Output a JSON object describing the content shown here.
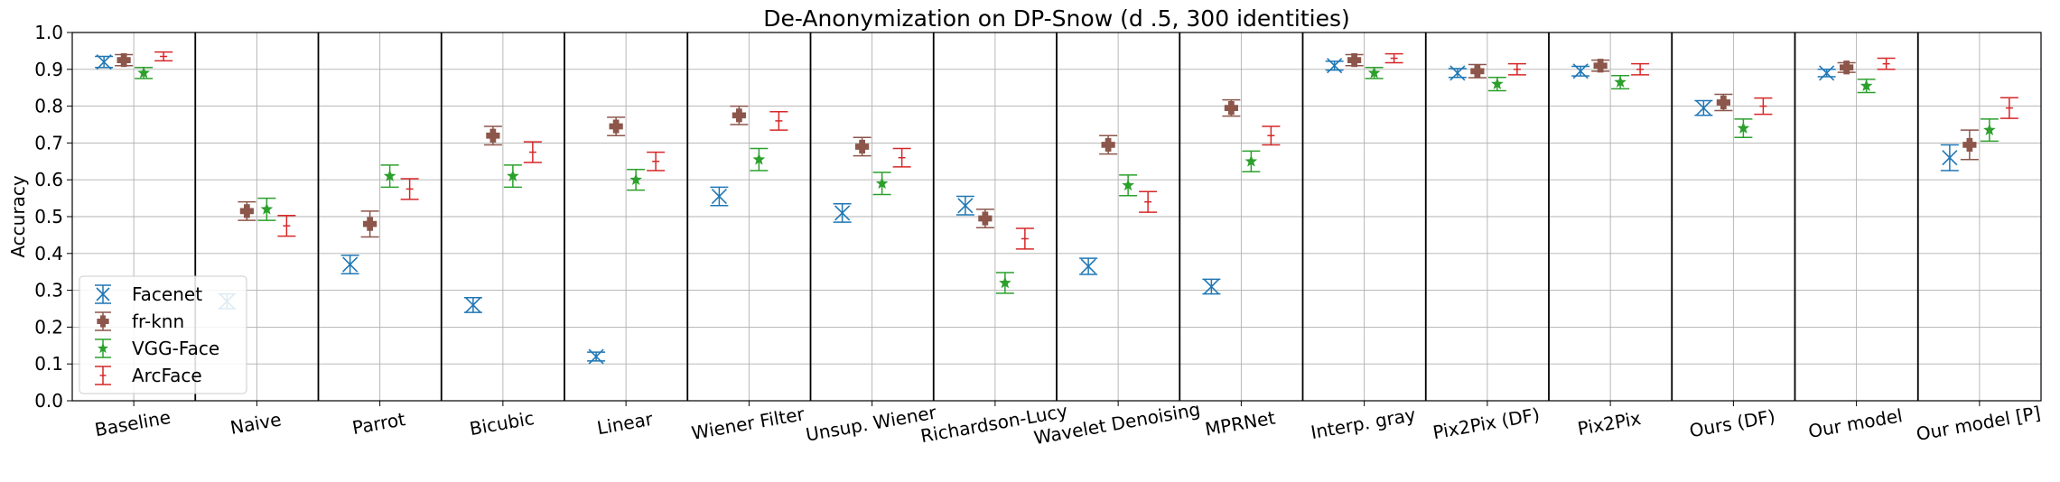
{
  "chart_data": {
    "type": "scatter",
    "title": "De-Anonymization on DP-Snow (d .5, 300 identities)",
    "xlabel": "",
    "ylabel": "Accuracy",
    "ylim": [
      0.0,
      1.0
    ],
    "yticks": [
      "0.0",
      "0.1",
      "0.2",
      "0.3",
      "0.4",
      "0.5",
      "0.6",
      "0.7",
      "0.8",
      "0.9",
      "1.0"
    ],
    "grid": true,
    "legend_position": "lower-left",
    "categories": [
      "Baseline",
      "Naive",
      "Parrot",
      "Bicubic",
      "Linear",
      "Wiener Filter",
      "Unsup. Wiener",
      "Richardson-Lucy",
      "Wavelet Denoising",
      "MPRNet",
      "Interp. gray",
      "Pix2Pix (DF)",
      "Pix2Pix",
      "Ours (DF)",
      "Our model",
      "Our model [P]"
    ],
    "series": [
      {
        "name": "Facenet",
        "color": "#1f77b4",
        "marker": "x",
        "values": [
          0.92,
          0.27,
          0.37,
          0.26,
          0.12,
          0.555,
          0.51,
          0.53,
          0.365,
          0.31,
          0.91,
          0.89,
          0.895,
          0.795,
          0.89,
          0.66
        ],
        "errors": [
          0.015,
          0.02,
          0.025,
          0.02,
          0.012,
          0.025,
          0.025,
          0.025,
          0.022,
          0.02,
          0.012,
          0.012,
          0.013,
          0.02,
          0.01,
          0.035
        ]
      },
      {
        "name": "fr-knn",
        "color": "#8c564b",
        "marker": "plus",
        "values": [
          0.925,
          0.515,
          0.48,
          0.72,
          0.745,
          0.775,
          0.69,
          0.495,
          0.695,
          0.795,
          0.925,
          0.895,
          0.91,
          0.81,
          0.905,
          0.695
        ],
        "errors": [
          0.015,
          0.025,
          0.035,
          0.025,
          0.025,
          0.025,
          0.025,
          0.025,
          0.025,
          0.022,
          0.015,
          0.018,
          0.015,
          0.022,
          0.013,
          0.04
        ]
      },
      {
        "name": "VGG-Face",
        "color": "#2ca02c",
        "marker": "star",
        "values": [
          0.89,
          0.52,
          0.61,
          0.61,
          0.6,
          0.655,
          0.59,
          0.32,
          0.585,
          0.65,
          0.89,
          0.86,
          0.865,
          0.74,
          0.855,
          0.735
        ],
        "errors": [
          0.015,
          0.03,
          0.03,
          0.03,
          0.028,
          0.03,
          0.03,
          0.028,
          0.028,
          0.028,
          0.015,
          0.018,
          0.018,
          0.025,
          0.018,
          0.03
        ]
      },
      {
        "name": "ArcFace",
        "color": "#d62728",
        "marker": "tick",
        "values": [
          0.935,
          0.475,
          0.575,
          0.675,
          0.65,
          0.76,
          0.66,
          0.44,
          0.54,
          0.72,
          0.93,
          0.9,
          0.9,
          0.8,
          0.915,
          0.795
        ],
        "errors": [
          0.012,
          0.028,
          0.028,
          0.028,
          0.025,
          0.025,
          0.025,
          0.028,
          0.028,
          0.025,
          0.012,
          0.015,
          0.015,
          0.022,
          0.015,
          0.028
        ]
      }
    ]
  }
}
